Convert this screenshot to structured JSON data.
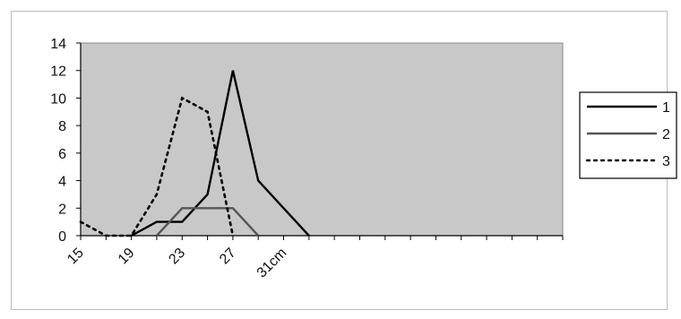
{
  "chart_data": {
    "type": "line",
    "x_tick_labels": [
      "15",
      "19",
      "23",
      "27",
      "31cm"
    ],
    "y_tick_labels": [
      "0",
      "2",
      "4",
      "6",
      "8",
      "10",
      "12",
      "14"
    ],
    "ylim": [
      0,
      14
    ],
    "grid": false,
    "legend_placement": "right",
    "x": [
      15,
      17,
      19,
      21,
      23,
      25,
      27,
      29,
      31,
      33,
      35,
      37,
      39,
      41,
      43,
      45,
      47,
      49,
      51,
      53
    ],
    "series": [
      {
        "name": "1",
        "style": "solid",
        "color": "#000000",
        "values": [
          null,
          null,
          0,
          1,
          1,
          3,
          12,
          4,
          2,
          0,
          null,
          null,
          null,
          null,
          null,
          null,
          null,
          null,
          null,
          null
        ]
      },
      {
        "name": "2",
        "style": "solid",
        "color": "#555555",
        "values": [
          null,
          null,
          null,
          0,
          2,
          2,
          2,
          0,
          null,
          null,
          null,
          null,
          null,
          null,
          null,
          null,
          null,
          null,
          null,
          null
        ]
      },
      {
        "name": "3",
        "style": "dotted",
        "color": "#000000",
        "values": [
          1,
          0,
          0,
          3,
          10,
          9,
          0,
          null,
          null,
          null,
          null,
          null,
          null,
          null,
          null,
          null,
          null,
          null,
          null,
          null
        ]
      }
    ],
    "colors": {
      "plot_background": "#c8c8c8",
      "frame": "#bdbdbd"
    }
  }
}
